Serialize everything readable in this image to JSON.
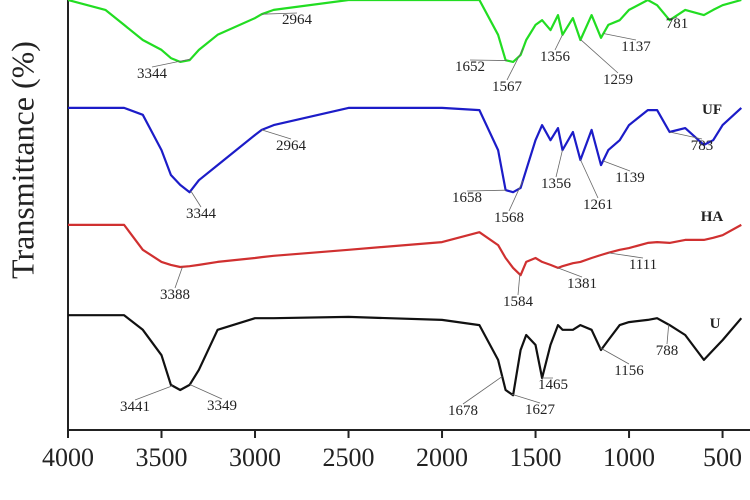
{
  "chart_data": {
    "type": "line",
    "y_label": "Transmittance (%)",
    "xlim": [
      4000,
      380
    ],
    "ylim": [
      0,
      100
    ],
    "xticks": [
      4000,
      3500,
      3000,
      2500,
      2000,
      1500,
      1000,
      500
    ],
    "x": [
      4000,
      3800,
      3700,
      3600,
      3500,
      3450,
      3400,
      3350,
      3300,
      3200,
      3000,
      2964,
      2900,
      2500,
      2000,
      1800,
      1700,
      1660,
      1620,
      1580,
      1550,
      1500,
      1465,
      1420,
      1380,
      1356,
      1300,
      1260,
      1200,
      1150,
      1111,
      1050,
      1000,
      900,
      850,
      783,
      700,
      600,
      550,
      500,
      400
    ],
    "series": [
      {
        "color": "#22dd22",
        "values": [
          100,
          97.7,
          94.2,
          90.7,
          88.4,
          86.5,
          85.6,
          86.0,
          88.4,
          91.9,
          95.8,
          96.7,
          97.7,
          100,
          100,
          100,
          91.9,
          86.0,
          85.6,
          87.2,
          90.7,
          94.2,
          95.3,
          93.0,
          96.5,
          91.9,
          95.8,
          90.7,
          96.5,
          91.2,
          94.2,
          95.3,
          97.7,
          100,
          98.8,
          95.3,
          97.7,
          96.5,
          97.7,
          98.8,
          100
        ],
        "peaks": [
          3344,
          2964,
          1652,
          1567,
          1356,
          1259,
          1137,
          781
        ]
      },
      {
        "name": "UF",
        "color": "#1c1cc8",
        "values": [
          74.9,
          74.9,
          74.9,
          73.3,
          65.1,
          59.3,
          57.0,
          55.3,
          58.1,
          61.6,
          68.6,
          69.8,
          70.9,
          74.9,
          74.9,
          74.4,
          65.1,
          55.8,
          55.3,
          56.3,
          60.5,
          67.4,
          70.9,
          67.4,
          70.2,
          65.1,
          69.3,
          62.8,
          69.8,
          61.6,
          65.1,
          67.4,
          70.9,
          74.4,
          74.4,
          69.3,
          70.2,
          66.3,
          67.4,
          70.9,
          74.9
        ],
        "peaks": [
          2964,
          3344,
          1658,
          1568,
          1356,
          1261,
          1139,
          783
        ]
      },
      {
        "name": "HA",
        "color": "#d03030",
        "values": [
          47.7,
          47.7,
          47.7,
          41.9,
          39.1,
          38.4,
          37.9,
          38.1,
          38.4,
          39.1,
          40.0,
          40.2,
          40.5,
          41.9,
          43.7,
          46.0,
          43.0,
          40.0,
          37.7,
          36.0,
          39.1,
          40.0,
          39.1,
          38.4,
          37.7,
          38.1,
          38.8,
          39.1,
          40.0,
          40.7,
          41.2,
          41.9,
          42.3,
          43.5,
          43.7,
          43.5,
          44.2,
          44.2,
          44.7,
          45.3,
          47.7
        ],
        "peaks": [
          3388,
          1584,
          1381,
          1111
        ]
      },
      {
        "name": "U",
        "color": "#111111",
        "values": [
          26.7,
          26.7,
          26.7,
          23.3,
          17.4,
          10.5,
          9.3,
          10.5,
          14.0,
          23.3,
          26.0,
          26.0,
          26.0,
          26.3,
          25.6,
          24.4,
          16.3,
          9.3,
          8.1,
          18.6,
          22.1,
          19.8,
          12.1,
          19.8,
          24.4,
          23.3,
          23.3,
          24.4,
          23.3,
          18.6,
          20.9,
          24.4,
          25.1,
          25.6,
          26.0,
          24.4,
          22.1,
          16.3,
          18.6,
          20.9,
          26.0
        ],
        "peaks": [
          3441,
          3349,
          1678,
          1627,
          1465,
          1156,
          788
        ]
      }
    ]
  }
}
